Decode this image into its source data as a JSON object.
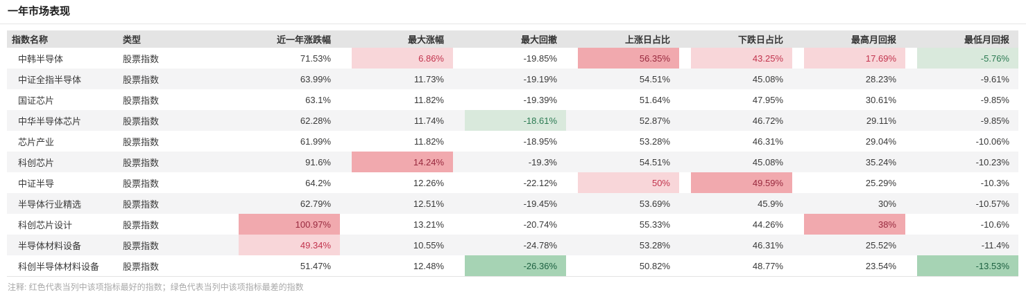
{
  "page_title": "一年市场表现",
  "note": "注释: 红色代表当列中该项指标最好的指数；绿色代表当列中该项指标最差的指数",
  "highlight_styles": {
    "lp": {
      "bg": "#f8d6d9",
      "text": "#c2334d",
      "label": "light-red-highlight"
    },
    "dp": {
      "bg": "#f1a9ae",
      "text": "#98293e",
      "label": "dark-red-highlight"
    },
    "lg": {
      "bg": "#d9e9dc",
      "text": "#2b7a52",
      "label": "light-green-highlight"
    },
    "dg": {
      "bg": "#a6d3b4",
      "text": "#1d6141",
      "label": "dark-green-highlight"
    }
  },
  "table": {
    "columns": [
      "指数名称",
      "类型",
      "近一年涨跌幅",
      "最大涨幅",
      "最大回撤",
      "上涨日占比",
      "下跌日占比",
      "最高月回报",
      "最低月回报"
    ],
    "rows": [
      {
        "name": "中韩半导体",
        "type": "股票指数",
        "values": [
          {
            "v": "71.53%"
          },
          {
            "v": "6.86%",
            "h": "lp"
          },
          {
            "v": "-19.85%"
          },
          {
            "v": "56.35%",
            "h": "dp"
          },
          {
            "v": "43.25%",
            "h": "lp"
          },
          {
            "v": "17.69%",
            "h": "lp"
          },
          {
            "v": "-5.76%",
            "h": "lg"
          }
        ]
      },
      {
        "name": "中证全指半导体",
        "type": "股票指数",
        "values": [
          {
            "v": "63.99%"
          },
          {
            "v": "11.73%"
          },
          {
            "v": "-19.19%"
          },
          {
            "v": "54.51%"
          },
          {
            "v": "45.08%"
          },
          {
            "v": "28.23%"
          },
          {
            "v": "-9.61%"
          }
        ]
      },
      {
        "name": "国证芯片",
        "type": "股票指数",
        "values": [
          {
            "v": "63.1%"
          },
          {
            "v": "11.82%"
          },
          {
            "v": "-19.39%"
          },
          {
            "v": "51.64%"
          },
          {
            "v": "47.95%"
          },
          {
            "v": "30.61%"
          },
          {
            "v": "-9.85%"
          }
        ]
      },
      {
        "name": "中华半导体芯片",
        "type": "股票指数",
        "values": [
          {
            "v": "62.28%"
          },
          {
            "v": "11.74%"
          },
          {
            "v": "-18.61%",
            "h": "lg"
          },
          {
            "v": "52.87%"
          },
          {
            "v": "46.72%"
          },
          {
            "v": "29.11%"
          },
          {
            "v": "-9.85%"
          }
        ]
      },
      {
        "name": "芯片产业",
        "type": "股票指数",
        "values": [
          {
            "v": "61.99%"
          },
          {
            "v": "11.82%"
          },
          {
            "v": "-18.95%"
          },
          {
            "v": "53.28%"
          },
          {
            "v": "46.31%"
          },
          {
            "v": "29.04%"
          },
          {
            "v": "-10.06%"
          }
        ]
      },
      {
        "name": "科创芯片",
        "type": "股票指数",
        "values": [
          {
            "v": "91.6%"
          },
          {
            "v": "14.24%",
            "h": "dp"
          },
          {
            "v": "-19.3%"
          },
          {
            "v": "54.51%"
          },
          {
            "v": "45.08%"
          },
          {
            "v": "35.24%"
          },
          {
            "v": "-10.23%"
          }
        ]
      },
      {
        "name": "中证半导",
        "type": "股票指数",
        "values": [
          {
            "v": "64.2%"
          },
          {
            "v": "12.26%"
          },
          {
            "v": "-22.12%"
          },
          {
            "v": "50%",
            "h": "lp"
          },
          {
            "v": "49.59%",
            "h": "dp"
          },
          {
            "v": "25.29%"
          },
          {
            "v": "-10.3%"
          }
        ]
      },
      {
        "name": "半导体行业精选",
        "type": "股票指数",
        "values": [
          {
            "v": "62.79%"
          },
          {
            "v": "12.51%"
          },
          {
            "v": "-19.45%"
          },
          {
            "v": "53.69%"
          },
          {
            "v": "45.9%"
          },
          {
            "v": "30%"
          },
          {
            "v": "-10.57%"
          }
        ]
      },
      {
        "name": "科创芯片设计",
        "type": "股票指数",
        "values": [
          {
            "v": "100.97%",
            "h": "dp"
          },
          {
            "v": "13.21%"
          },
          {
            "v": "-20.74%"
          },
          {
            "v": "55.33%"
          },
          {
            "v": "44.26%"
          },
          {
            "v": "38%",
            "h": "dp"
          },
          {
            "v": "-10.6%"
          }
        ]
      },
      {
        "name": "半导体材料设备",
        "type": "股票指数",
        "values": [
          {
            "v": "49.34%",
            "h": "lp"
          },
          {
            "v": "10.55%"
          },
          {
            "v": "-24.78%"
          },
          {
            "v": "53.28%"
          },
          {
            "v": "46.31%"
          },
          {
            "v": "25.52%"
          },
          {
            "v": "-11.4%"
          }
        ]
      },
      {
        "name": "科创半导体材料设备",
        "type": "股票指数",
        "values": [
          {
            "v": "51.47%"
          },
          {
            "v": "12.48%"
          },
          {
            "v": "-26.36%",
            "h": "dg"
          },
          {
            "v": "50.82%"
          },
          {
            "v": "48.77%"
          },
          {
            "v": "23.54%"
          },
          {
            "v": "-13.53%",
            "h": "dg"
          }
        ]
      }
    ]
  }
}
